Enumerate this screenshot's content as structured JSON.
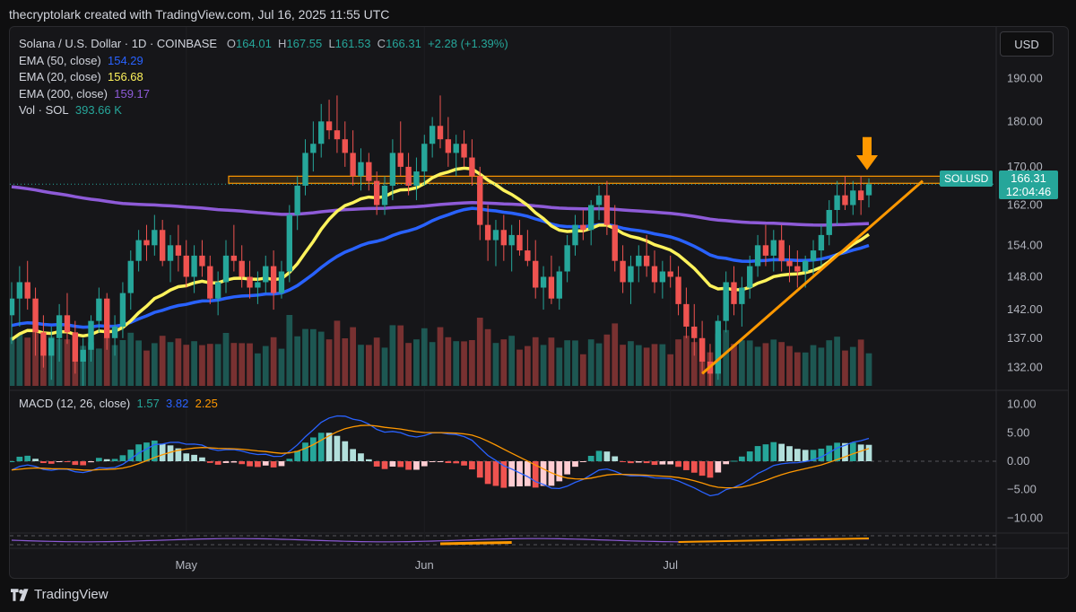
{
  "credit": "thecryptolark created with TradingView.com, Jul 16, 2025 11:55 UTC",
  "brand": {
    "name": "TradingView",
    "logo_icon": "tradingview-logo-icon"
  },
  "currency_button": "USD",
  "legend": {
    "symbol": "Solana / U.S. Dollar · 1D · COINBASE",
    "o_label": "O",
    "o": "164.01",
    "h_label": "H",
    "h": "167.55",
    "l_label": "L",
    "l": "161.53",
    "c_label": "C",
    "c": "166.31",
    "change": "+2.28 (+1.39%)",
    "ema50_label": "EMA (50, close)",
    "ema50": "154.29",
    "ema20_label": "EMA (20, close)",
    "ema20": "156.68",
    "ema200_label": "EMA (200, close)",
    "ema200": "159.17",
    "vol_label": "Vol · SOL",
    "vol": "393.66 K"
  },
  "price_tag": {
    "symbol": "SOLUSD",
    "price": "166.31",
    "countdown": "12:04:46"
  },
  "macd_legend": {
    "label": "MACD (12, 26, close)",
    "hist": "1.57",
    "macd": "3.82",
    "signal": "2.25"
  },
  "colors": {
    "up": "#26a69a",
    "down": "#ef5350",
    "ema20": "#fff35c",
    "ema50": "#2962ff",
    "ema200": "#8e5bd8",
    "trend": "#ff9800",
    "arrow": "#ff9800"
  },
  "chart_data": [
    {
      "type": "candlestick",
      "title": "Solana / U.S. Dollar · 1D · COINBASE",
      "x_ticks": [
        "May",
        "Jun",
        "Jul"
      ],
      "y_ticks": [
        190.0,
        180.0,
        170.0,
        162.0,
        154.0,
        148.0,
        142.0,
        137.0,
        132.0
      ],
      "y_scale": "log",
      "ohlc": [
        [
          141,
          147,
          136,
          144
        ],
        [
          144,
          150,
          139,
          147
        ],
        [
          147,
          151,
          142,
          144
        ],
        [
          144,
          146,
          134,
          138
        ],
        [
          138,
          141,
          132,
          134
        ],
        [
          134,
          139,
          130,
          137
        ],
        [
          137,
          143,
          133,
          141
        ],
        [
          141,
          145,
          136,
          138
        ],
        [
          138,
          140,
          131,
          133
        ],
        [
          133,
          137,
          129,
          135
        ],
        [
          135,
          141,
          133,
          140
        ],
        [
          140,
          146,
          138,
          144
        ],
        [
          144,
          145,
          135,
          137
        ],
        [
          137,
          141,
          134,
          139
        ],
        [
          139,
          147,
          137,
          145
        ],
        [
          145,
          153,
          142,
          151
        ],
        [
          151,
          157,
          149,
          155
        ],
        [
          155,
          158,
          151,
          154
        ],
        [
          154,
          160,
          152,
          157
        ],
        [
          157,
          159,
          150,
          151
        ],
        [
          151,
          156,
          147,
          154
        ],
        [
          154,
          158,
          149,
          152
        ],
        [
          152,
          155,
          146,
          148
        ],
        [
          148,
          154,
          145,
          152
        ],
        [
          152,
          155,
          148,
          150
        ],
        [
          150,
          152,
          143,
          144
        ],
        [
          144,
          149,
          141,
          147
        ],
        [
          147,
          155,
          145,
          152
        ],
        [
          152,
          158,
          149,
          151
        ],
        [
          151,
          154,
          146,
          148
        ],
        [
          148,
          151,
          144,
          146
        ],
        [
          146,
          149,
          143,
          147
        ],
        [
          147,
          152,
          145,
          150
        ],
        [
          150,
          153,
          142,
          145
        ],
        [
          145,
          151,
          144,
          149
        ],
        [
          149,
          162,
          147,
          160
        ],
        [
          160,
          168,
          157,
          166
        ],
        [
          166,
          176,
          164,
          173
        ],
        [
          173,
          180,
          169,
          175
        ],
        [
          175,
          184,
          172,
          180
        ],
        [
          180,
          185,
          176,
          178
        ],
        [
          178,
          186,
          173,
          176
        ],
        [
          176,
          180,
          170,
          173
        ],
        [
          173,
          178,
          166,
          168
        ],
        [
          168,
          174,
          165,
          171
        ],
        [
          171,
          173,
          165,
          167
        ],
        [
          167,
          169,
          160,
          162
        ],
        [
          162,
          168,
          160,
          166
        ],
        [
          166,
          176,
          163,
          173
        ],
        [
          173,
          180,
          168,
          170
        ],
        [
          170,
          173,
          164,
          166
        ],
        [
          166,
          172,
          163,
          169
        ],
        [
          169,
          177,
          166,
          175
        ],
        [
          175,
          181,
          172,
          179
        ],
        [
          179,
          186,
          174,
          176
        ],
        [
          176,
          181,
          170,
          173
        ],
        [
          173,
          177,
          168,
          175
        ],
        [
          175,
          178,
          170,
          172
        ],
        [
          172,
          176,
          166,
          168
        ],
        [
          168,
          170,
          155,
          158
        ],
        [
          158,
          162,
          151,
          155
        ],
        [
          155,
          159,
          150,
          157
        ],
        [
          157,
          160,
          151,
          154
        ],
        [
          154,
          158,
          149,
          156
        ],
        [
          156,
          159,
          152,
          153
        ],
        [
          153,
          157,
          150,
          151
        ],
        [
          151,
          155,
          144,
          146
        ],
        [
          146,
          150,
          142,
          148
        ],
        [
          148,
          152,
          143,
          144
        ],
        [
          144,
          150,
          142,
          149
        ],
        [
          149,
          156,
          147,
          154
        ],
        [
          154,
          160,
          152,
          158
        ],
        [
          158,
          161,
          155,
          157
        ],
        [
          157,
          163,
          154,
          162
        ],
        [
          162,
          166,
          159,
          164
        ],
        [
          164,
          167,
          156,
          158
        ],
        [
          158,
          162,
          149,
          151
        ],
        [
          151,
          154,
          145,
          147
        ],
        [
          147,
          152,
          143,
          150
        ],
        [
          150,
          154,
          147,
          152
        ],
        [
          152,
          156,
          148,
          150
        ],
        [
          150,
          153,
          145,
          147
        ],
        [
          147,
          151,
          144,
          149
        ],
        [
          149,
          152,
          146,
          148
        ],
        [
          148,
          150,
          141,
          143
        ],
        [
          143,
          146,
          137,
          139
        ],
        [
          139,
          143,
          134,
          137
        ],
        [
          137,
          140,
          131,
          133
        ],
        [
          133,
          136,
          129,
          131
        ],
        [
          131,
          141,
          130,
          140
        ],
        [
          140,
          149,
          138,
          147
        ],
        [
          147,
          150,
          141,
          143
        ],
        [
          143,
          148,
          139,
          146
        ],
        [
          146,
          152,
          144,
          150
        ],
        [
          150,
          156,
          148,
          154
        ],
        [
          154,
          158,
          150,
          152
        ],
        [
          152,
          157,
          149,
          155
        ],
        [
          155,
          158,
          149,
          151
        ],
        [
          151,
          154,
          147,
          150
        ],
        [
          150,
          153,
          146,
          149
        ],
        [
          149,
          152,
          146,
          151
        ],
        [
          151,
          155,
          148,
          153
        ],
        [
          153,
          158,
          150,
          156
        ],
        [
          156,
          163,
          154,
          161
        ],
        [
          161,
          167,
          158,
          164
        ],
        [
          164,
          168,
          161,
          162
        ],
        [
          162,
          167,
          160,
          165
        ],
        [
          165,
          168,
          160,
          163
        ],
        [
          164.01,
          167.55,
          161.53,
          166.31
        ]
      ],
      "ema20": {
        "name": "EMA (20, close)",
        "last": 156.68
      },
      "ema50": {
        "name": "EMA (50, close)",
        "last": 154.29
      },
      "ema200": {
        "name": "EMA (200, close)",
        "last": 159.17
      },
      "resistance_zone": [
        166.5,
        168
      ],
      "annotations": [
        "ascending support trendline",
        "horizontal resistance zone",
        "downward arrow above last candle"
      ]
    },
    {
      "type": "bar",
      "title": "Vol · SOL",
      "last": "393.66 K"
    },
    {
      "type": "line",
      "title": "MACD (12, 26, close)",
      "y_ticks": [
        10.0,
        5.0,
        0.0,
        -5.0,
        -10.0
      ],
      "last": {
        "histogram": 1.57,
        "macd": 3.82,
        "signal": 2.25
      }
    }
  ]
}
